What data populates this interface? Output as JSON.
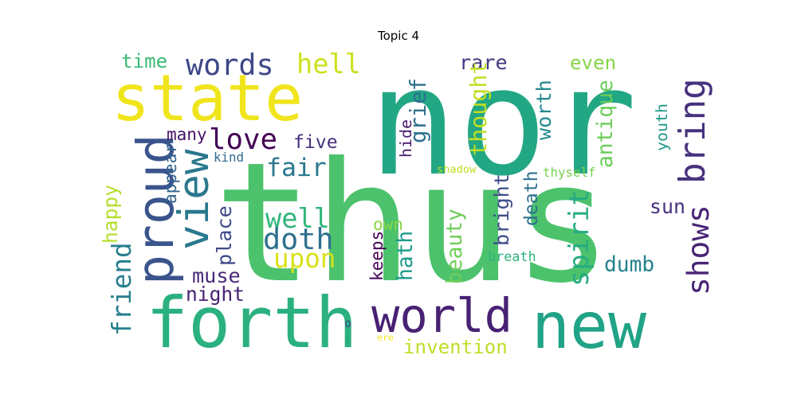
{
  "title": "Topic 4",
  "words": [
    {
      "text": "thus",
      "color": "#4cc26c",
      "vertical": false
    },
    {
      "text": "nor",
      "color": "#22a784",
      "vertical": false
    },
    {
      "text": "state",
      "color": "#f0e51c",
      "vertical": false
    },
    {
      "text": "forth",
      "color": "#2bb07f",
      "vertical": false
    },
    {
      "text": "new",
      "color": "#20a386",
      "vertical": false
    },
    {
      "text": "world",
      "color": "#482173",
      "vertical": false
    },
    {
      "text": "proud",
      "color": "#3a548c",
      "vertical": true
    },
    {
      "text": "view",
      "color": "#2a788e",
      "vertical": true
    },
    {
      "text": "words",
      "color": "#3f4788",
      "vertical": false
    },
    {
      "text": "hell",
      "color": "#cde11d",
      "vertical": false
    },
    {
      "text": "time",
      "color": "#3bbb75",
      "vertical": false
    },
    {
      "text": "love",
      "color": "#440154",
      "vertical": false
    },
    {
      "text": "fair",
      "color": "#2a788e",
      "vertical": false
    },
    {
      "text": "well",
      "color": "#31b57b",
      "vertical": false
    },
    {
      "text": "doth",
      "color": "#2d708e",
      "vertical": false
    },
    {
      "text": "upon",
      "color": "#d8e219",
      "vertical": false
    },
    {
      "text": "grief",
      "color": "#2d708e",
      "vertical": true
    },
    {
      "text": "rare",
      "color": "#453781",
      "vertical": false
    },
    {
      "text": "thought",
      "color": "#c2df23",
      "vertical": true
    },
    {
      "text": "worth",
      "color": "#23898e",
      "vertical": true
    },
    {
      "text": "even",
      "color": "#86d549",
      "vertical": false
    },
    {
      "text": "antique",
      "color": "#6ccd5a",
      "vertical": true
    },
    {
      "text": "bring",
      "color": "#46327e",
      "vertical": true
    },
    {
      "text": "youth",
      "color": "#1f9a8a",
      "vertical": true
    },
    {
      "text": "many",
      "color": "#471164",
      "vertical": false
    },
    {
      "text": "five",
      "color": "#472f7d",
      "vertical": false
    },
    {
      "text": "hide",
      "color": "#481b6d",
      "vertical": true
    },
    {
      "text": "kind",
      "color": "#31688e",
      "vertical": false
    },
    {
      "text": "appear",
      "color": "#33638d",
      "vertical": true
    },
    {
      "text": "happy",
      "color": "#b5de2b",
      "vertical": true
    },
    {
      "text": "friend",
      "color": "#277f8e",
      "vertical": true
    },
    {
      "text": "place",
      "color": "#3e4a89",
      "vertical": true
    },
    {
      "text": "shadow",
      "color": "#bddf26",
      "vertical": false
    },
    {
      "text": "thyself",
      "color": "#7ad151",
      "vertical": false
    },
    {
      "text": "bright",
      "color": "#3d4e8a",
      "vertical": true
    },
    {
      "text": "death",
      "color": "#2c728e",
      "vertical": true
    },
    {
      "text": "spirit",
      "color": "#25ac82",
      "vertical": true
    },
    {
      "text": "shows",
      "color": "#482576",
      "vertical": true
    },
    {
      "text": "sun",
      "color": "#46307e",
      "vertical": false
    },
    {
      "text": "own",
      "color": "#8bd646",
      "vertical": false
    },
    {
      "text": "beauty",
      "color": "#6ece58",
      "vertical": true
    },
    {
      "text": "keeps",
      "color": "#440154",
      "vertical": true
    },
    {
      "text": "hath",
      "color": "#1e9b8a",
      "vertical": true
    },
    {
      "text": "muse",
      "color": "#482878",
      "vertical": false
    },
    {
      "text": "night",
      "color": "#482173",
      "vertical": false
    },
    {
      "text": "dumb",
      "color": "#26828e",
      "vertical": false
    },
    {
      "text": "breath",
      "color": "#2fb47c",
      "vertical": false
    },
    {
      "text": "invention",
      "color": "#bddf26",
      "vertical": false
    },
    {
      "text": "o",
      "color": "#3b528b",
      "vertical": false
    },
    {
      "text": "ere",
      "color": "#f1e51d",
      "vertical": false
    }
  ]
}
